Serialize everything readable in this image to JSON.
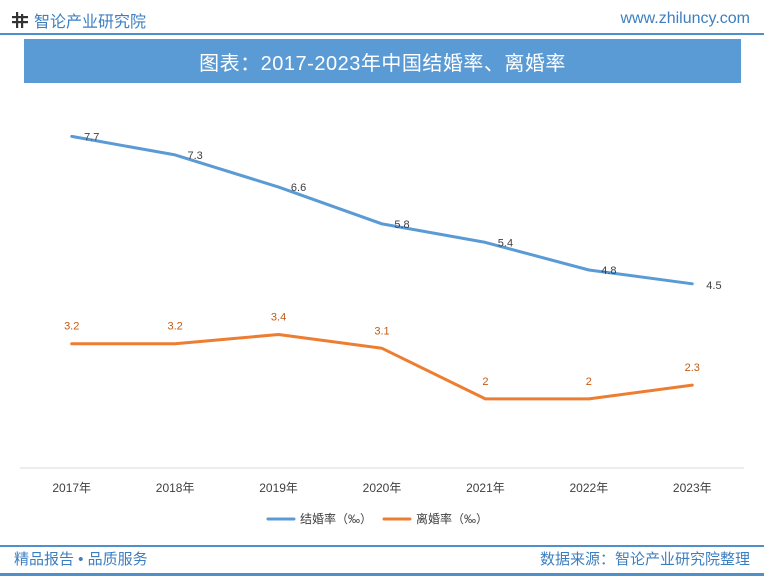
{
  "header": {
    "brand": "智论产业研究院",
    "website": "www.zhiluncy.com",
    "title": "图表：2017-2023年中国结婚率、离婚率"
  },
  "footer": {
    "left": "精品报告 • 品质服务",
    "right": "数据来源：智论产业研究院整理"
  },
  "colors": {
    "accent": "#4f8fca",
    "title_bg": "#5b9bd5",
    "marriage": "#5b9bd5",
    "divorce": "#ed7d31"
  },
  "icons": {
    "logo": "logo-mark-icon"
  },
  "chart_data": {
    "type": "line",
    "title": "图表：2017-2023年中国结婚率、离婚率",
    "categories": [
      "2017年",
      "2018年",
      "2019年",
      "2020年",
      "2021年",
      "2022年",
      "2023年"
    ],
    "series": [
      {
        "name": "结婚率（‰）",
        "values": [
          7.7,
          7.3,
          6.6,
          5.8,
          5.4,
          4.8,
          4.5
        ],
        "color": "#5b9bd5"
      },
      {
        "name": "离婚率（‰）",
        "values": [
          3.2,
          3.2,
          3.4,
          3.1,
          2,
          2,
          2.3
        ],
        "color": "#ed7d31"
      }
    ],
    "xlabel": "",
    "ylabel": "",
    "ylim": [
      0.5,
      8.6
    ],
    "grid": false,
    "legend": "bottom"
  }
}
